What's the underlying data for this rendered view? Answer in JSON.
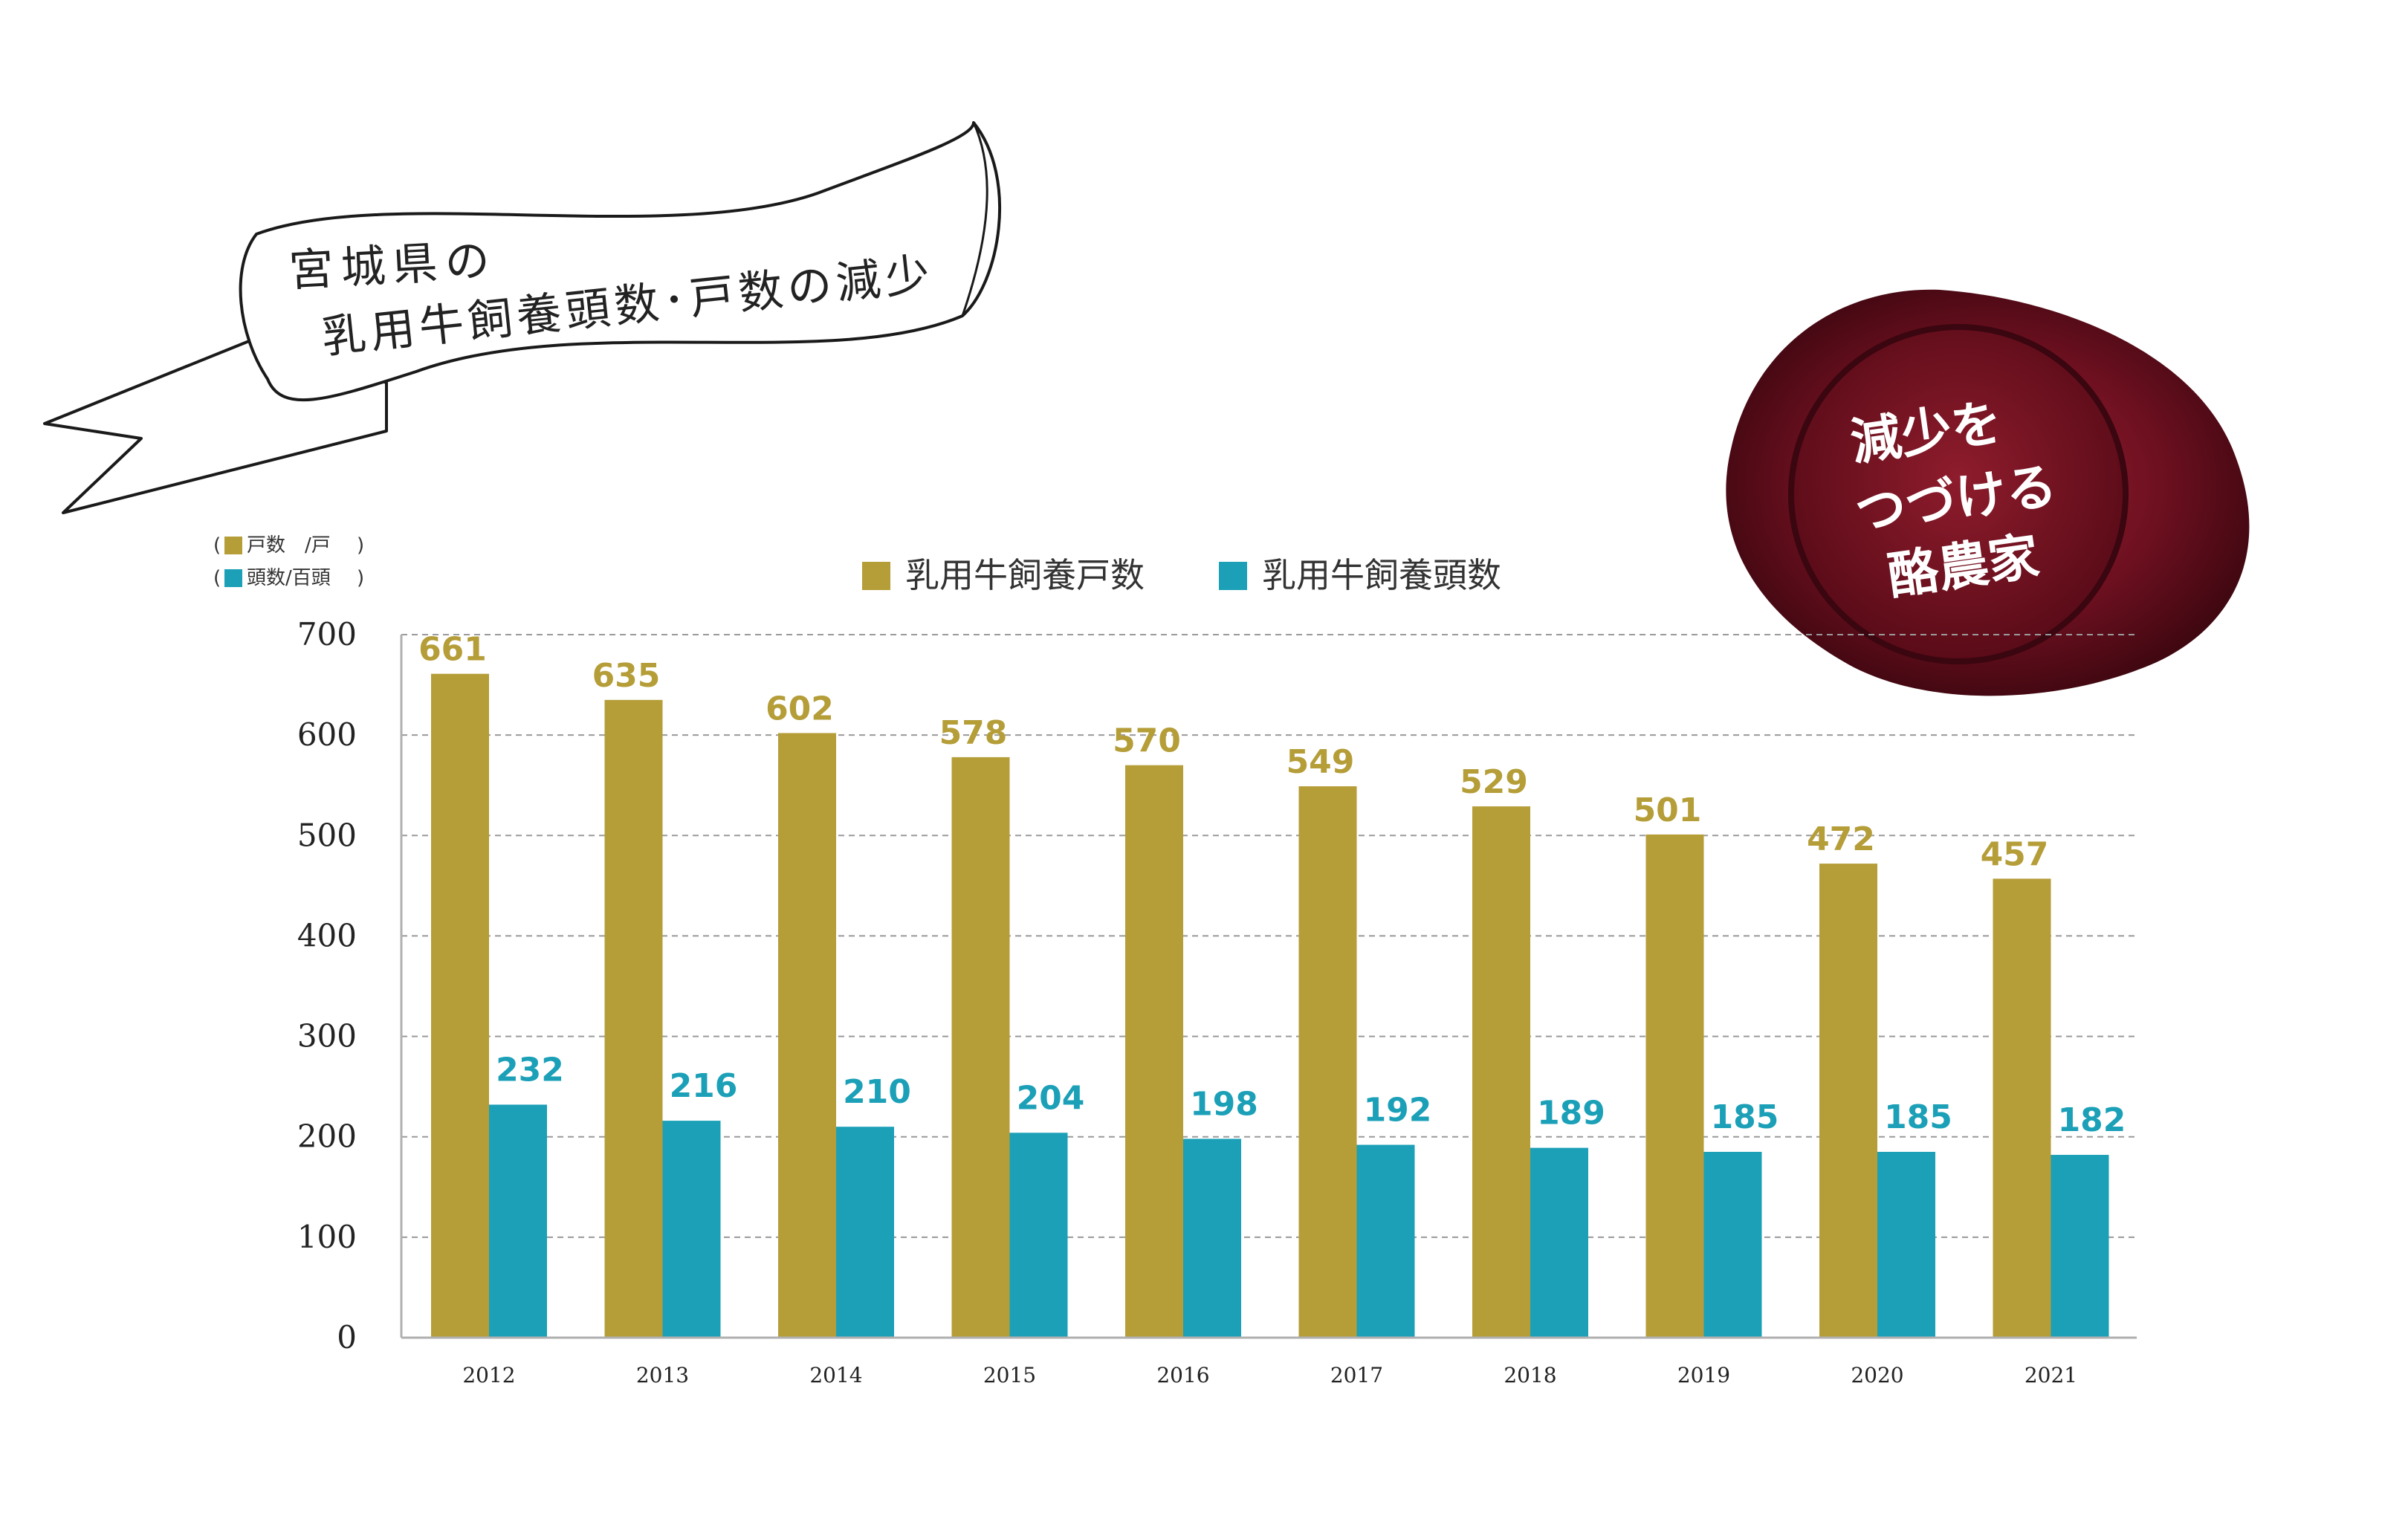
{
  "banner": {
    "line1": "宮城県の",
    "line2": "乳用牛飼養頭数･戸数の減少"
  },
  "seal": {
    "line1": "減少を",
    "line2": "つづける",
    "line3": "酪農家",
    "color": "#7a1225"
  },
  "units": {
    "households": "戸数　/戸",
    "heads": "頭数/百頭"
  },
  "chart_data": {
    "type": "bar",
    "categories": [
      "2012",
      "2013",
      "2014",
      "2015",
      "2016",
      "2017",
      "2018",
      "2019",
      "2020",
      "2021"
    ],
    "series": [
      {
        "name": "乳用牛飼養戸数",
        "values": [
          661,
          635,
          602,
          578,
          570,
          549,
          529,
          501,
          472,
          457
        ],
        "color": "#b59d38"
      },
      {
        "name": "乳用牛飼養頭数",
        "values": [
          232,
          216,
          210,
          204,
          198,
          192,
          189,
          185,
          185,
          182
        ],
        "color": "#1ba0b8"
      }
    ],
    "yticks": [
      "0",
      "100",
      "200",
      "300",
      "400",
      "500",
      "600",
      "700"
    ],
    "ylim": [
      0,
      700
    ],
    "grid": true,
    "legend_position": "top-center"
  }
}
